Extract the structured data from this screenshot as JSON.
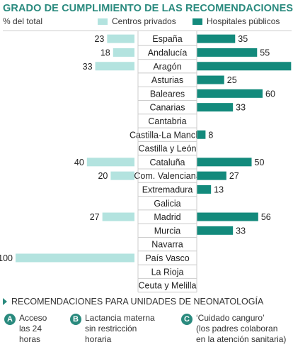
{
  "title": "GRADO DE CUMPLIMIENTO DE LAS RECOMENDACIONES",
  "units_label": "% del total",
  "colors": {
    "privados": "#b3e3df",
    "publicos": "#138a7c",
    "accent": "#2a8a7e",
    "divider": "#cccccc"
  },
  "chart_data": {
    "type": "bar",
    "orientation": "horizontal-diverging",
    "title": "GRADO DE CUMPLIMIENTO DE LAS RECOMENDACIONES",
    "ylabel": "% del total",
    "xlim": [
      0,
      100
    ],
    "categories": [
      "España",
      "Andalucía",
      "Aragón",
      "Asturias",
      "Baleares",
      "Canarias",
      "Cantabria",
      "Castilla-La Mancha",
      "Castilla y León",
      "Cataluña",
      "Com. Valenciana",
      "Extremadura",
      "Galicia",
      "Madrid",
      "Murcia",
      "Navarra",
      "País Vasco",
      "La Rioja",
      "Ceuta y Melilla"
    ],
    "series": [
      {
        "name": "Centros privados",
        "values": [
          23,
          18,
          33,
          null,
          null,
          null,
          null,
          null,
          null,
          40,
          20,
          null,
          null,
          27,
          null,
          null,
          100,
          null,
          null
        ]
      },
      {
        "name": "Hospitales públicos",
        "values": [
          35,
          55,
          86,
          25,
          60,
          33,
          null,
          8,
          null,
          50,
          27,
          13,
          null,
          56,
          33,
          null,
          null,
          null,
          null
        ]
      }
    ],
    "legend": "top"
  },
  "footer": {
    "title": "RECOMENDACIONES PARA UNIDADES DE NEONATOLOGÍA",
    "items": [
      {
        "letter": "A",
        "text": "Acceso\nlas 24\nhoras"
      },
      {
        "letter": "B",
        "text": "Lactancia materna\nsin restricción\nhoraria"
      },
      {
        "letter": "C",
        "text": "‘Cuidado canguro’\n(los padres colaboran\nen la atención sanitaria)"
      }
    ]
  }
}
